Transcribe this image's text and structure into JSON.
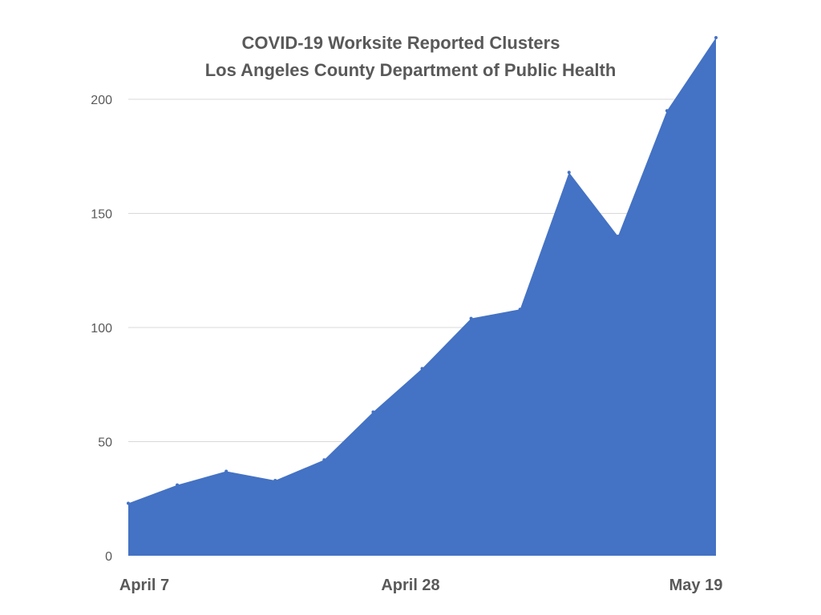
{
  "chart_data": {
    "type": "area",
    "title": "COVID-19 Worksite Reported Clusters",
    "subtitle": "Los Angeles County Department of Public Health",
    "xlabel": "",
    "ylabel": "",
    "ylim": [
      0,
      230
    ],
    "yticks": [
      0,
      50,
      100,
      150,
      200
    ],
    "grid": true,
    "x_tick_labels": [
      {
        "label": "April 7",
        "index": 0
      },
      {
        "label": "April 28",
        "index": 6
      },
      {
        "label": "May 19",
        "index": 12
      }
    ],
    "series": [
      {
        "color": "#4472c4",
        "values": [
          23,
          31,
          37,
          33,
          42,
          63,
          82,
          104,
          108,
          168,
          140,
          195,
          227
        ]
      }
    ]
  }
}
